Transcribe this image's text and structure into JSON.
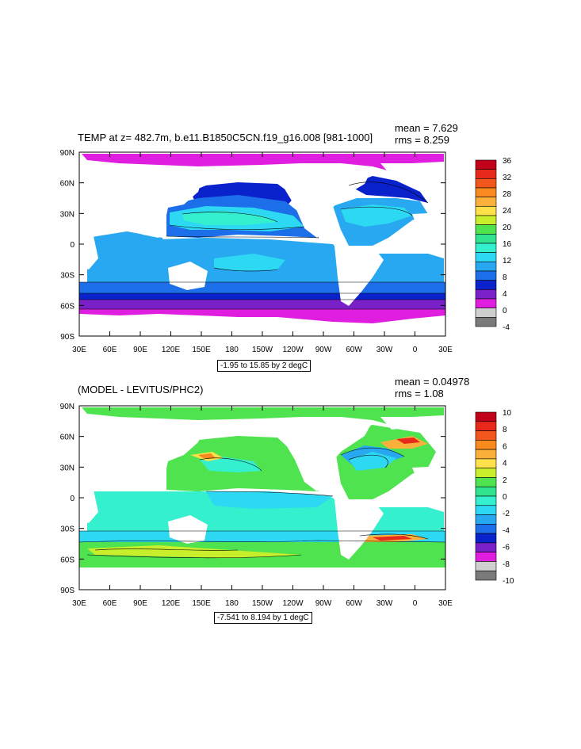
{
  "panels": [
    {
      "id": "top",
      "title": "TEMP at z= 482.7m, b.e11.B1850C5CN.f19_g16.008 [981-1000]",
      "mean_label": "mean = 7.629",
      "rms_label": "rms = 8.259",
      "range_label": "-1.95 to 15.85 by 2 degC",
      "y_ticks": [
        "90N",
        "60N",
        "30N",
        "0",
        "30S",
        "60S",
        "90S"
      ],
      "x_ticks": [
        "30E",
        "60E",
        "90E",
        "120E",
        "150E",
        "180",
        "150W",
        "120W",
        "90W",
        "60W",
        "30W",
        "0",
        "30E"
      ],
      "colorbar_labels": [
        "36",
        "32",
        "28",
        "24",
        "20",
        "16",
        "12",
        "8",
        "4",
        "0",
        "-4"
      ],
      "colorbar_colors": [
        "#c2001a",
        "#e8281b",
        "#f2561c",
        "#f88a1f",
        "#fbb03b",
        "#fde04a",
        "#c8ee2c",
        "#4fe34f",
        "#2fe38f",
        "#35f0ce",
        "#2dd8f2",
        "#28a8f0",
        "#1c6fe8",
        "#0a22cc",
        "#7a20c8",
        "#e01ee0",
        "#cfcfcf",
        "#7a7a7a"
      ],
      "colorbar_min": -4,
      "colorbar_max": 36
    },
    {
      "id": "bottom",
      "title": "(MODEL - LEVITUS/PHC2)",
      "mean_label": "mean = 0.04978",
      "rms_label": "rms = 1.08",
      "range_label": "-7.541 to 8.194 by 1 degC",
      "y_ticks": [
        "90N",
        "60N",
        "30N",
        "0",
        "30S",
        "60S",
        "90S"
      ],
      "x_ticks": [
        "30E",
        "60E",
        "90E",
        "120E",
        "150E",
        "180",
        "150W",
        "120W",
        "90W",
        "60W",
        "30W",
        "0",
        "30E"
      ],
      "colorbar_labels": [
        "10",
        "8",
        "6",
        "4",
        "2",
        "0",
        "-2",
        "-4",
        "-6",
        "-8",
        "-10"
      ],
      "colorbar_colors": [
        "#c2001a",
        "#e8281b",
        "#f2561c",
        "#f88a1f",
        "#fbb03b",
        "#fde04a",
        "#c8ee2c",
        "#4fe34f",
        "#2fe38f",
        "#35f0ce",
        "#2dd8f2",
        "#28a8f0",
        "#1c6fe8",
        "#0a22cc",
        "#7a20c8",
        "#e01ee0",
        "#cfcfcf",
        "#7a7a7a"
      ],
      "colorbar_min": -10,
      "colorbar_max": 10
    }
  ],
  "colors": {
    "land": "#ffffff",
    "top_polar_south": "#e01ee0",
    "top_southern_band": "#7a20c8",
    "top_southern_blue": "#0a22cc",
    "top_mid_blue": "#1c6fe8",
    "top_ocean_main": "#28a8f0",
    "top_subtropical": "#2dd8f2",
    "top_subtropical_core": "#35f0ce",
    "top_arctic": "#e01ee0",
    "bot_main": "#4fe34f",
    "bot_cyan": "#35f0ce",
    "bot_cyan2": "#2dd8f2",
    "bot_blue": "#28a8f0",
    "bot_yellow": "#fde04a",
    "bot_orange": "#fbb03b",
    "bot_red": "#e8281b"
  }
}
